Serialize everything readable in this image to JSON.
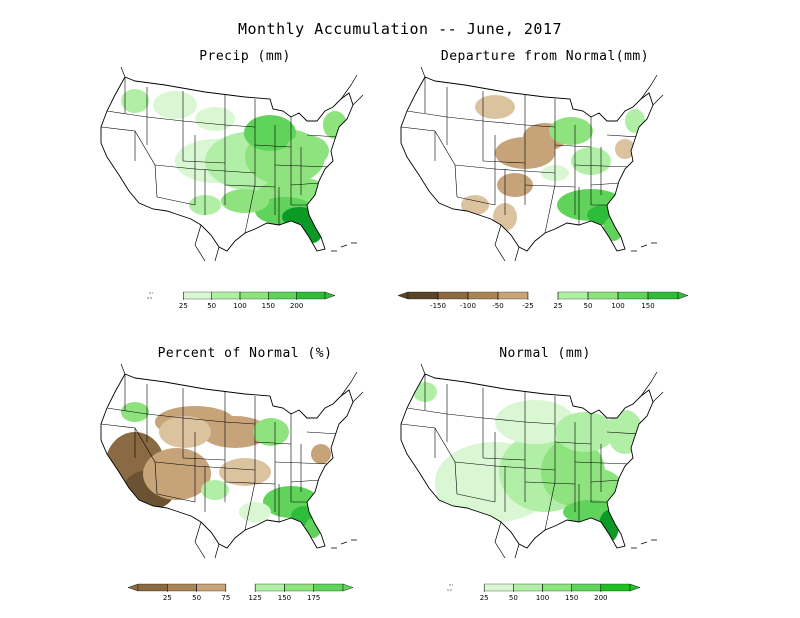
{
  "figure": {
    "title": "Monthly Accumulation -- June, 2017"
  },
  "colors": {
    "green1": "#d9f7d2",
    "green2": "#b1efa6",
    "green3": "#8ee37e",
    "green4": "#5fd35a",
    "green5": "#2ebd3a",
    "green6": "#0c9a26",
    "brown1": "#dcc3a0",
    "brown2": "#c7a37a",
    "brown3": "#a88457",
    "brown4": "#8a6a42",
    "brown5": "#6a5232",
    "border": "#000000"
  },
  "panels": [
    {
      "id": "precip",
      "title": "Precip (mm)",
      "legend": {
        "ticks": [
          "25",
          "50",
          "100",
          "150",
          "200"
        ],
        "colors": [
          "#ffffff",
          "#d9f7d2",
          "#b1efa6",
          "#8ee37e",
          "#5fd35a",
          "#2ebd3a"
        ],
        "left_arrow": "none"
      }
    },
    {
      "id": "departure",
      "title": "Departure from Normal(mm)",
      "legend": {
        "ticks": [
          "-150",
          "-100",
          "-50",
          "-25",
          "25",
          "50",
          "100",
          "150"
        ],
        "colors": [
          "#5a4328",
          "#8a6a42",
          "#a88457",
          "#c7a37a",
          "#ffffff",
          "#b1efa6",
          "#8ee37e",
          "#5fd35a",
          "#2ebd3a"
        ],
        "left_arrow": "brown"
      }
    },
    {
      "id": "percent",
      "title": "Percent of Normal (%)",
      "legend": {
        "ticks": [
          "25",
          "50",
          "75",
          "125",
          "150",
          "175"
        ],
        "colors": [
          "#8a6a42",
          "#a88457",
          "#c7a37a",
          "#ffffff",
          "#b1efa6",
          "#8ee37e",
          "#5fd35a"
        ],
        "left_arrow": "brown"
      }
    },
    {
      "id": "normal",
      "title": "Normal (mm)",
      "legend": {
        "ticks": [
          "25",
          "50",
          "100",
          "150",
          "200"
        ],
        "colors": [
          "#ffffff",
          "#d9f7d2",
          "#b1efa6",
          "#8ee37e",
          "#5fd35a",
          "#20c020"
        ],
        "left_arrow": "none"
      }
    }
  ]
}
